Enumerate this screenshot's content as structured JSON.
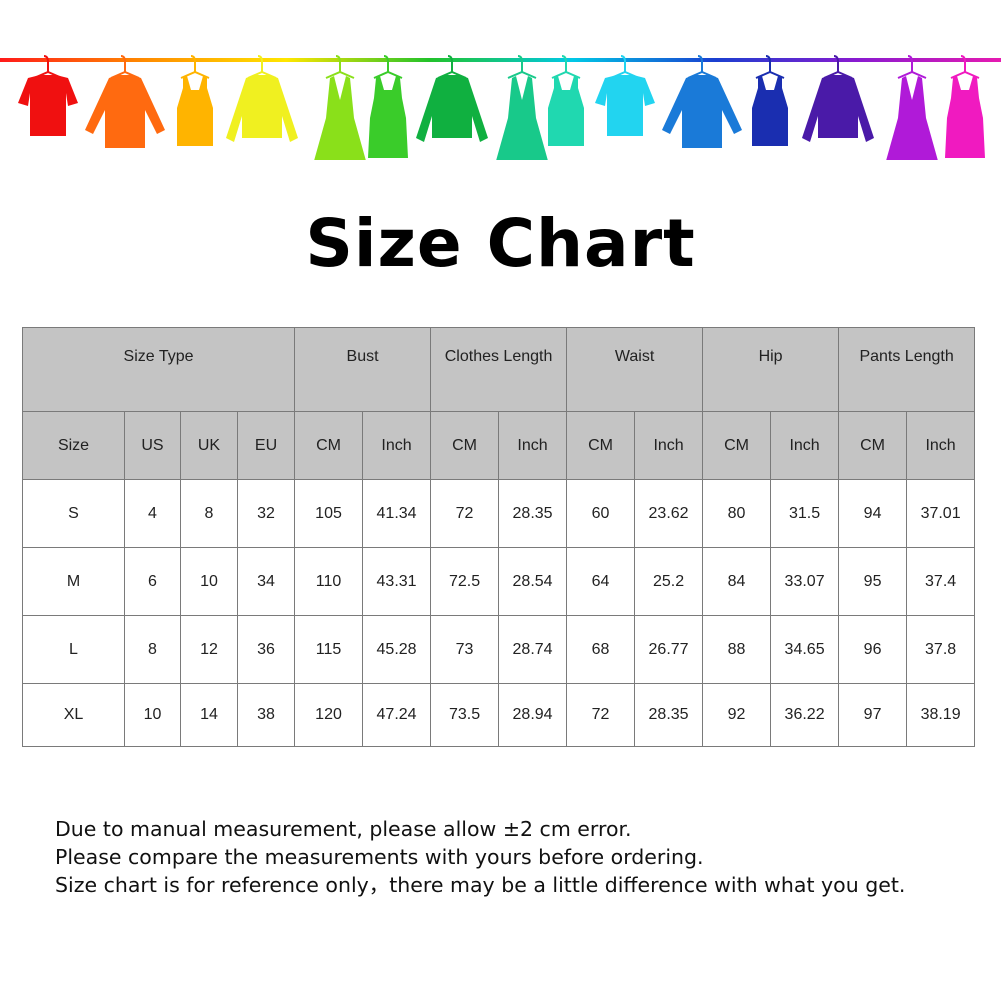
{
  "title": "Size Chart",
  "banner": {
    "rod_colors": [
      "#ff1a1a",
      "#ff8a00",
      "#ffe600",
      "#22c22a",
      "#00c8e6",
      "#1a3fd0",
      "#8a1ad0",
      "#e61ab0"
    ],
    "clothes": [
      {
        "type": "tshirt",
        "color": "#f01010"
      },
      {
        "type": "shirt",
        "color": "#ff6a10"
      },
      {
        "type": "tank",
        "color": "#ffb400"
      },
      {
        "type": "sweater",
        "color": "#f0f020"
      },
      {
        "type": "dress",
        "color": "#8ae01a"
      },
      {
        "type": "tankdress",
        "color": "#3acc2a"
      },
      {
        "type": "sweater",
        "color": "#10b040"
      },
      {
        "type": "dress",
        "color": "#18c98a"
      },
      {
        "type": "tank",
        "color": "#20d8b0"
      },
      {
        "type": "tshirt",
        "color": "#22d4f0"
      },
      {
        "type": "shirt",
        "color": "#1a7ad8"
      },
      {
        "type": "tank",
        "color": "#1a2eb0"
      },
      {
        "type": "sweater",
        "color": "#4a1aa8"
      },
      {
        "type": "dress",
        "color": "#b01ad8"
      },
      {
        "type": "tankdress",
        "color": "#f01ac0"
      }
    ]
  },
  "table": {
    "group_headers": [
      "Size Type",
      "Bust",
      "Clothes Length",
      "Waist",
      "Hip",
      "Pants Length"
    ],
    "sub_headers": [
      "Size",
      "US",
      "UK",
      "EU",
      "CM",
      "Inch",
      "CM",
      "Inch",
      "CM",
      "Inch",
      "CM",
      "Inch",
      "CM",
      "Inch"
    ],
    "rows": [
      [
        "S",
        "4",
        "8",
        "32",
        "105",
        "41.34",
        "72",
        "28.35",
        "60",
        "23.62",
        "80",
        "31.5",
        "94",
        "37.01"
      ],
      [
        "M",
        "6",
        "10",
        "34",
        "110",
        "43.31",
        "72.5",
        "28.54",
        "64",
        "25.2",
        "84",
        "33.07",
        "95",
        "37.4"
      ],
      [
        "L",
        "8",
        "12",
        "36",
        "115",
        "45.28",
        "73",
        "28.74",
        "68",
        "26.77",
        "88",
        "34.65",
        "96",
        "37.8"
      ],
      [
        "XL",
        "10",
        "14",
        "38",
        "120",
        "47.24",
        "73.5",
        "28.94",
        "72",
        "28.35",
        "92",
        "36.22",
        "97",
        "38.19"
      ]
    ]
  },
  "notes": [
    "Due to manual measurement, please allow ±2 cm error.",
    "Please compare the measurements with yours before ordering.",
    "Size chart is for reference only，there may be a little difference with what you get."
  ]
}
